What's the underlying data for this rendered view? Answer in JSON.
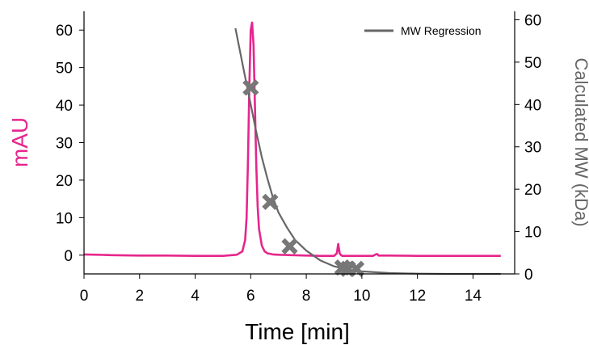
{
  "chart_data": {
    "type": "line",
    "xlabel": "Time [min]",
    "ylabel_left": "mAU",
    "ylabel_right": "Calculated MW (kDa)",
    "xlim": [
      0,
      15.5
    ],
    "ylim_left": [
      -5,
      65
    ],
    "ylim_right": [
      0,
      62
    ],
    "x_ticks": [
      0,
      2,
      4,
      6,
      8,
      10,
      12,
      14
    ],
    "y_left_ticks": [
      0,
      10,
      20,
      30,
      40,
      50,
      60
    ],
    "y_right_ticks": [
      0,
      10,
      20,
      30,
      40,
      50,
      60
    ],
    "grid": false,
    "legend_position": "top-right",
    "colors": {
      "chromatogram": "#e6268c",
      "regression": "#666666",
      "markers": "#777777",
      "left_axis_label": "#e6268c",
      "right_axis_label": "#666666"
    },
    "series": [
      {
        "axis": "left",
        "style": "line",
        "color": "#e6268c",
        "x": [
          0,
          0.5,
          1,
          2,
          3,
          4,
          5,
          5.5,
          5.7,
          5.8,
          5.85,
          5.9,
          5.95,
          6.0,
          6.05,
          6.1,
          6.15,
          6.2,
          6.25,
          6.3,
          6.4,
          6.5,
          6.6,
          6.8,
          7.0,
          7.5,
          8.0,
          8.5,
          9.0,
          9.1,
          9.15,
          9.2,
          9.25,
          9.3,
          9.4,
          9.6,
          10.0,
          10.4,
          10.5,
          10.55,
          10.6,
          11,
          12,
          13,
          14,
          15
        ],
        "values": [
          0.2,
          0.1,
          0.0,
          -0.1,
          -0.1,
          -0.2,
          -0.2,
          0.1,
          1.0,
          4.0,
          10.0,
          25.0,
          45.0,
          60.0,
          62.0,
          56.0,
          40.0,
          24.0,
          13.0,
          7.0,
          2.5,
          1.0,
          0.5,
          0.2,
          0.1,
          0.0,
          -0.1,
          -0.2,
          -0.2,
          0.5,
          3.0,
          0.5,
          0.0,
          -0.2,
          -0.2,
          -0.2,
          -0.2,
          -0.2,
          0.2,
          0.3,
          -0.1,
          -0.1,
          -0.2,
          -0.2,
          -0.2,
          -0.2
        ]
      },
      {
        "name": "MW Regression",
        "axis": "right",
        "style": "line",
        "color": "#666666",
        "x": [
          5.45,
          5.6,
          5.8,
          6.0,
          6.2,
          6.4,
          6.6,
          6.8,
          7.0,
          7.3,
          7.6,
          8.0,
          8.5,
          9.0,
          9.5,
          10.0,
          11.0,
          12.0,
          13.0,
          14.0,
          15.0
        ],
        "values": [
          58.0,
          53.0,
          46.5,
          40.0,
          33.5,
          27.5,
          22.5,
          18.0,
          14.5,
          11.0,
          8.0,
          5.5,
          3.2,
          1.8,
          1.0,
          0.6,
          0.2,
          0.05,
          0.0,
          0.0,
          0.0
        ]
      },
      {
        "axis": "right",
        "style": "marker-x",
        "color": "#777777",
        "x": [
          6.0,
          6.7,
          7.4,
          9.3,
          9.5,
          9.8
        ],
        "values": [
          44.0,
          17.0,
          6.5,
          1.5,
          1.2,
          1.2
        ]
      }
    ]
  }
}
